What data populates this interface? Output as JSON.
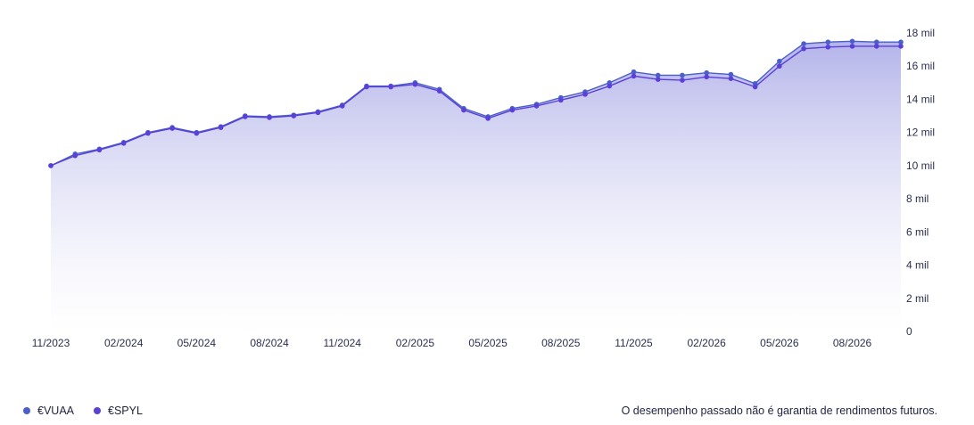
{
  "chart_data": {
    "type": "line",
    "x": [
      "11/2023",
      "12/2023",
      "01/2024",
      "02/2024",
      "03/2024",
      "04/2024",
      "05/2024",
      "06/2024",
      "07/2024",
      "08/2024",
      "09/2024",
      "10/2024",
      "11/2024",
      "12/2024",
      "01/2025",
      "02/2025",
      "03/2025",
      "04/2025",
      "05/2025",
      "06/2025",
      "07/2025",
      "08/2025",
      "09/2025",
      "10/2025",
      "11/2025",
      "12/2025",
      "01/2026",
      "02/2026",
      "03/2026",
      "04/2026",
      "05/2026",
      "06/2026",
      "07/2026",
      "08/2026",
      "09/2026",
      "10/2026"
    ],
    "x_tick_labels": [
      "11/2023",
      "02/2024",
      "05/2024",
      "08/2024",
      "11/2024",
      "02/2025",
      "05/2025",
      "08/2025",
      "11/2025",
      "02/2026",
      "05/2026",
      "08/2026"
    ],
    "y_tick_labels": [
      "0",
      "2 mil",
      "4 mil",
      "6 mil",
      "8 mil",
      "10 mil",
      "12 mil",
      "14 mil",
      "16 mil",
      "18 mil"
    ],
    "ylim": [
      0,
      18000
    ],
    "series": [
      {
        "name": "€VUAA",
        "color": "#4a5fc9",
        "values": [
          10000,
          10700,
          11000,
          11400,
          12000,
          12300,
          12000,
          12350,
          13000,
          12950,
          13050,
          13250,
          13650,
          14800,
          14800,
          15000,
          14600,
          13450,
          12950,
          13450,
          13700,
          14100,
          14450,
          15000,
          15650,
          15450,
          15450,
          15600,
          15500,
          14950,
          16300,
          17350,
          17450,
          17500,
          17450,
          17450
        ]
      },
      {
        "name": "€SPYL",
        "color": "#5a3fd8",
        "values": [
          10000,
          10600,
          10950,
          11350,
          11950,
          12250,
          11950,
          12300,
          12950,
          12900,
          13000,
          13200,
          13600,
          14750,
          14750,
          14900,
          14500,
          13350,
          12850,
          13350,
          13600,
          13950,
          14300,
          14800,
          15400,
          15200,
          15150,
          15350,
          15250,
          14750,
          16000,
          17050,
          17150,
          17200,
          17200,
          17200
        ]
      }
    ],
    "grid": false,
    "legend_position": "bottom-left",
    "fill_gradient_top": "#b4b4ea",
    "fill_gradient_bottom": "#ffffff"
  },
  "footer": {
    "disclaimer": "O desempenho passado não é garantia de rendimentos futuros."
  }
}
